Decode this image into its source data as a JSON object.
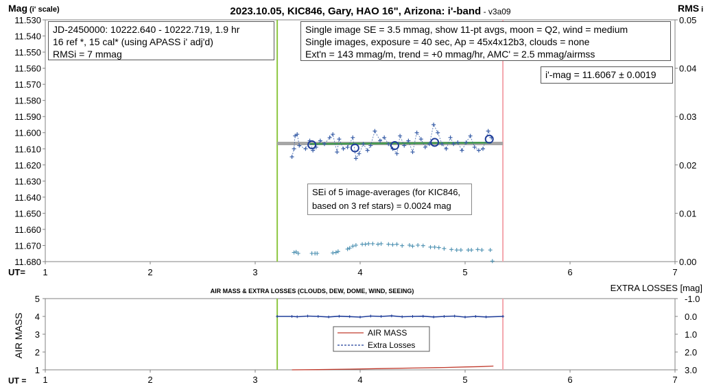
{
  "title": {
    "main": "2023.10.05, KIC846, Gary, HAO 16\", Arizona: i'-band",
    "version": " - v3a09"
  },
  "top": {
    "y_label_main": "Mag",
    "y_label_sub": " (i' scale)",
    "y2_label_main": "RMS",
    "y2_label_sub": " i",
    "x_label": "UT=",
    "info_left": [
      "JD-2450000: 10222.640 - 10222.719, 1.9  hr",
      "16 ref *, 15 cal* (using APASS i' adj'd)",
      "RMSi = 7 mmag"
    ],
    "info_right": [
      "Single image SE = 3.5 mmag, show 11-pt avgs, moon = Q2, wind = medium",
      "Single images, exposure = 40 sec, Ap = 45x4x12b3, clouds = none",
      "Ext'n = 143 mmag/m, trend = +0 mmag/hr, AMC' = 2.5 mmag/airmss"
    ],
    "imag": "i'-mag = 11.6067 ± 0.0019",
    "sei": [
      "SEi of 5 image-averages (for KIC846,",
      "based on 3 ref stars) = 0.0024 mag"
    ]
  },
  "bottom": {
    "title": "AIR MASS & EXTRA LOSSES (CLOUDS, DEW, DOME, WIND, SEEING)",
    "y_label": "AIR MASS",
    "y2_label": "EXTRA LOSSES [mag]",
    "x_label": "UT =",
    "legend_air": "AIR MASS",
    "legend_extra": "Extra Losses"
  },
  "colors": {
    "mag_points": "#3a5fa8",
    "trend_green": "#3f9a4a",
    "trend_gray": "#a6a6a6",
    "vline_green": "#8cc63f",
    "vline_pink": "#f4a6ad",
    "rms_points": "#4a8fb0",
    "airmass": "#c0392b",
    "extra": "#1f3d99",
    "axis": "#808080"
  },
  "chart_data": [
    {
      "type": "scatter",
      "title": "2023.10.05, KIC846, Gary, HAO 16\", Arizona: i'-band",
      "xlabel": "UT=",
      "ylabel": "Mag (i' scale)",
      "y2label": "RMS i",
      "xlim": [
        1,
        7
      ],
      "ylim": [
        11.53,
        11.68
      ],
      "y_reversed": true,
      "y2lim": [
        0,
        0.05
      ],
      "xticks": [
        1,
        2,
        3,
        4,
        5,
        6,
        7
      ],
      "yticks": [
        11.53,
        11.54,
        11.55,
        11.56,
        11.57,
        11.58,
        11.59,
        11.6,
        11.61,
        11.62,
        11.63,
        11.64,
        11.65,
        11.66,
        11.67,
        11.68
      ],
      "y2ticks": [
        0,
        0.01,
        0.02,
        0.03,
        0.04,
        0.05
      ],
      "vlines": [
        3.21,
        5.36
      ],
      "series": [
        {
          "kind": "single-images",
          "x": [
            3.35,
            3.37,
            3.38,
            3.4,
            3.42,
            3.48,
            3.52,
            3.55,
            3.58,
            3.62,
            3.66,
            3.71,
            3.74,
            3.78,
            3.8,
            3.84,
            3.88,
            3.93,
            3.96,
            3.99,
            4.03,
            4.07,
            4.1,
            4.14,
            4.19,
            4.23,
            4.27,
            4.31,
            4.35,
            4.38,
            4.42,
            4.46,
            4.5,
            4.54,
            4.58,
            4.62,
            4.66,
            4.7,
            4.74,
            4.78,
            4.82,
            4.86,
            4.89,
            4.93,
            4.97,
            5.01,
            5.05,
            5.09,
            5.13,
            5.17,
            5.22,
            5.25
          ],
          "y": [
            11.615,
            11.61,
            11.602,
            11.601,
            11.608,
            11.61,
            11.605,
            11.611,
            11.609,
            11.605,
            11.607,
            11.603,
            11.601,
            11.612,
            11.604,
            11.61,
            11.609,
            11.603,
            11.616,
            11.613,
            11.607,
            11.611,
            11.608,
            11.599,
            11.605,
            11.603,
            11.607,
            11.61,
            11.613,
            11.602,
            11.608,
            11.605,
            11.612,
            11.6,
            11.604,
            11.609,
            11.607,
            11.595,
            11.6,
            11.607,
            11.61,
            11.603,
            11.607,
            11.606,
            11.611,
            11.606,
            11.602,
            11.609,
            11.611,
            11.61,
            11.599,
            11.603
          ]
        },
        {
          "kind": "image-averages",
          "x": [
            3.54,
            3.95,
            4.33,
            4.71,
            5.23
          ],
          "y": [
            11.6075,
            11.6095,
            11.608,
            11.606,
            11.604
          ]
        },
        {
          "kind": "mean-trend",
          "x": [
            3.21,
            5.36
          ],
          "y": [
            11.6067,
            11.6067
          ]
        },
        {
          "kind": "rms",
          "axis": "y2",
          "x": [
            3.37,
            3.39,
            3.41,
            3.54,
            3.57,
            3.59,
            3.74,
            3.77,
            3.79,
            3.88,
            3.9,
            3.93,
            3.96,
            4.02,
            4.05,
            4.08,
            4.12,
            4.17,
            4.2,
            4.27,
            4.31,
            4.35,
            4.4,
            4.47,
            4.5,
            4.55,
            4.6,
            4.67,
            4.71,
            4.75,
            4.8,
            4.87,
            4.92,
            4.96,
            5.03,
            5.06,
            5.12,
            5.16,
            5.24,
            5.26
          ],
          "y": [
            0.0019,
            0.002,
            0.0017,
            0.0017,
            0.0017,
            0.0017,
            0.0018,
            0.0019,
            0.0021,
            0.0026,
            0.0028,
            0.0032,
            0.0034,
            0.0036,
            0.0036,
            0.0037,
            0.0037,
            0.0036,
            0.0037,
            0.0036,
            0.0035,
            0.0036,
            0.0033,
            0.0034,
            0.0032,
            0.0034,
            0.0033,
            0.003,
            0.003,
            0.0029,
            0.0027,
            0.0025,
            0.0024,
            0.0024,
            0.0024,
            0.0024,
            0.0025,
            0.0024,
            0.0024,
            0.0001
          ]
        }
      ]
    },
    {
      "type": "line",
      "title": "AIR MASS & EXTRA LOSSES (CLOUDS, DEW, DOME, WIND, SEEING)",
      "xlabel": "UT =",
      "ylabel": "AIR MASS",
      "y2label": "EXTRA LOSSES [mag]",
      "xlim": [
        1,
        7
      ],
      "ylim": [
        1,
        5
      ],
      "y2lim": [
        3.0,
        -1.0
      ],
      "xticks": [
        1,
        2,
        3,
        4,
        5,
        6,
        7
      ],
      "yticks": [
        1,
        2,
        3,
        4,
        5
      ],
      "y2ticks": [
        -1.0,
        0.0,
        1.0,
        2.0,
        3.0
      ],
      "y2ticklabels": [
        "-1.0",
        "0.0",
        "1.0",
        "2.0",
        "3.0"
      ],
      "vlines": [
        3.21,
        5.36
      ],
      "legend": "center-bottom",
      "series": [
        {
          "name": "AIR MASS",
          "x": [
            3.35,
            3.6,
            3.9,
            4.2,
            4.5,
            4.8,
            5.0,
            5.15,
            5.27
          ],
          "y": [
            1.0,
            1.01,
            1.04,
            1.07,
            1.1,
            1.13,
            1.16,
            1.18,
            1.21
          ]
        },
        {
          "name": "Extra Losses",
          "axis": "y2",
          "x": [
            3.21,
            3.35,
            3.4,
            3.5,
            3.6,
            3.7,
            3.8,
            3.9,
            4.0,
            4.1,
            4.2,
            4.3,
            4.4,
            4.5,
            4.6,
            4.7,
            4.8,
            4.9,
            5.0,
            5.1,
            5.2,
            5.36
          ],
          "y": [
            0.0,
            0.0,
            0.02,
            -0.02,
            0.0,
            0.03,
            -0.01,
            0.01,
            0.04,
            -0.02,
            0.0,
            -0.03,
            0.02,
            0.0,
            -0.01,
            0.03,
            0.0,
            -0.02,
            0.04,
            0.0,
            0.03,
            0.0
          ]
        }
      ]
    }
  ]
}
